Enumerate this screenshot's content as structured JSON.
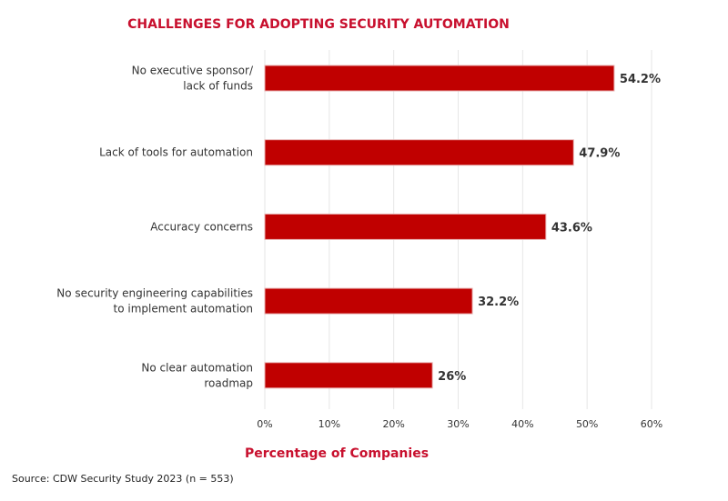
{
  "chart_data": {
    "type": "bar",
    "orientation": "horizontal",
    "title": "CHALLENGES FOR ADOPTING SECURITY AUTOMATION",
    "xlabel": "Percentage of Companies",
    "ylabel": "",
    "categories": [
      [
        "No executive sponsor/",
        "lack of funds"
      ],
      [
        "Lack of tools for automation"
      ],
      [
        "Accuracy concerns"
      ],
      [
        "No security engineering capabilities",
        "to implement automation"
      ],
      [
        "No clear automation",
        "roadmap"
      ]
    ],
    "values": [
      54.2,
      47.9,
      43.6,
      32.2,
      26
    ],
    "value_labels": [
      "54.2%",
      "47.9%",
      "43.6%",
      "32.2%",
      "26%"
    ],
    "xlim": [
      0,
      60
    ],
    "xticks": [
      0,
      10,
      20,
      30,
      40,
      50,
      60
    ],
    "xtick_labels": [
      "0%",
      "10%",
      "20%",
      "30%",
      "40%",
      "50%",
      "60%"
    ],
    "grid": "vertical",
    "legend": "none"
  },
  "source": "Source: CDW Security Study 2023 (n = 553)",
  "colors": {
    "title": "#c8102e",
    "axis_title": "#c8102e",
    "bar": "#c00000",
    "bar_edge": "#e8b0b0",
    "grid": "#e6e6e6",
    "category_text": "#333333",
    "value_text": "#333333",
    "tick_text": "#333333",
    "source_text": "#222222"
  }
}
